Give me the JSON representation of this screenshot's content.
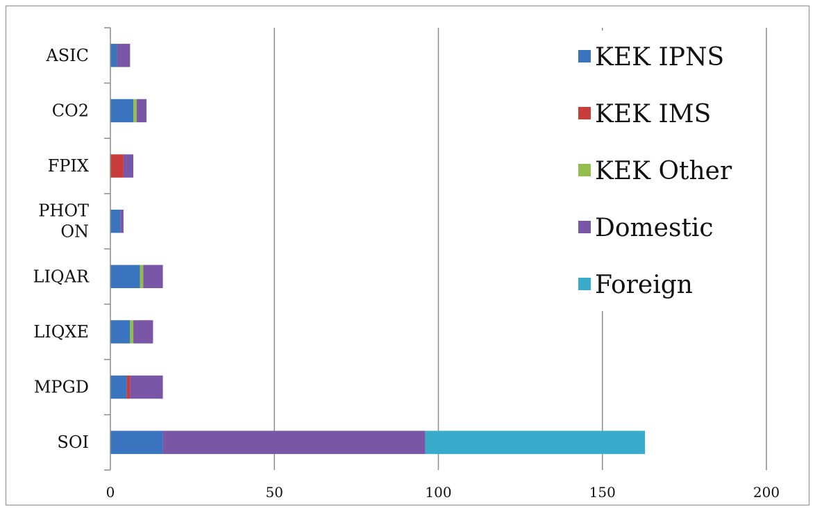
{
  "chart_data": {
    "type": "bar",
    "orientation": "horizontal",
    "stacked": true,
    "categories": [
      "SOI",
      "MPGD",
      "LIQXE",
      "LIQAR",
      "PHOTON",
      "FPIX",
      "CO2",
      "ASIC"
    ],
    "category_display": {
      "PHOTON": [
        "PHOT",
        "ON"
      ]
    },
    "series": [
      {
        "name": "KEK IPNS",
        "color": "#3a73be",
        "values": [
          16,
          5,
          6,
          9,
          3,
          0,
          7,
          2
        ]
      },
      {
        "name": "KEK IMS",
        "color": "#c83c3a",
        "values": [
          0,
          1,
          0,
          0,
          0,
          4,
          0,
          0
        ]
      },
      {
        "name": "KEK Other",
        "color": "#93be4f",
        "values": [
          0,
          0,
          1,
          1,
          0,
          0,
          1,
          0
        ]
      },
      {
        "name": "Domestic",
        "color": "#7a56a6",
        "values": [
          80,
          10,
          6,
          6,
          1,
          3,
          3,
          4
        ]
      },
      {
        "name": "Foreign",
        "color": "#3aaccb",
        "values": [
          67,
          0,
          0,
          0,
          0,
          0,
          0,
          0
        ]
      }
    ],
    "xlim": [
      0,
      200
    ],
    "xticks": [
      0,
      50,
      100,
      150,
      200
    ],
    "grid": true,
    "legend_position": "top-right",
    "title": "",
    "xlabel": "",
    "ylabel": ""
  }
}
